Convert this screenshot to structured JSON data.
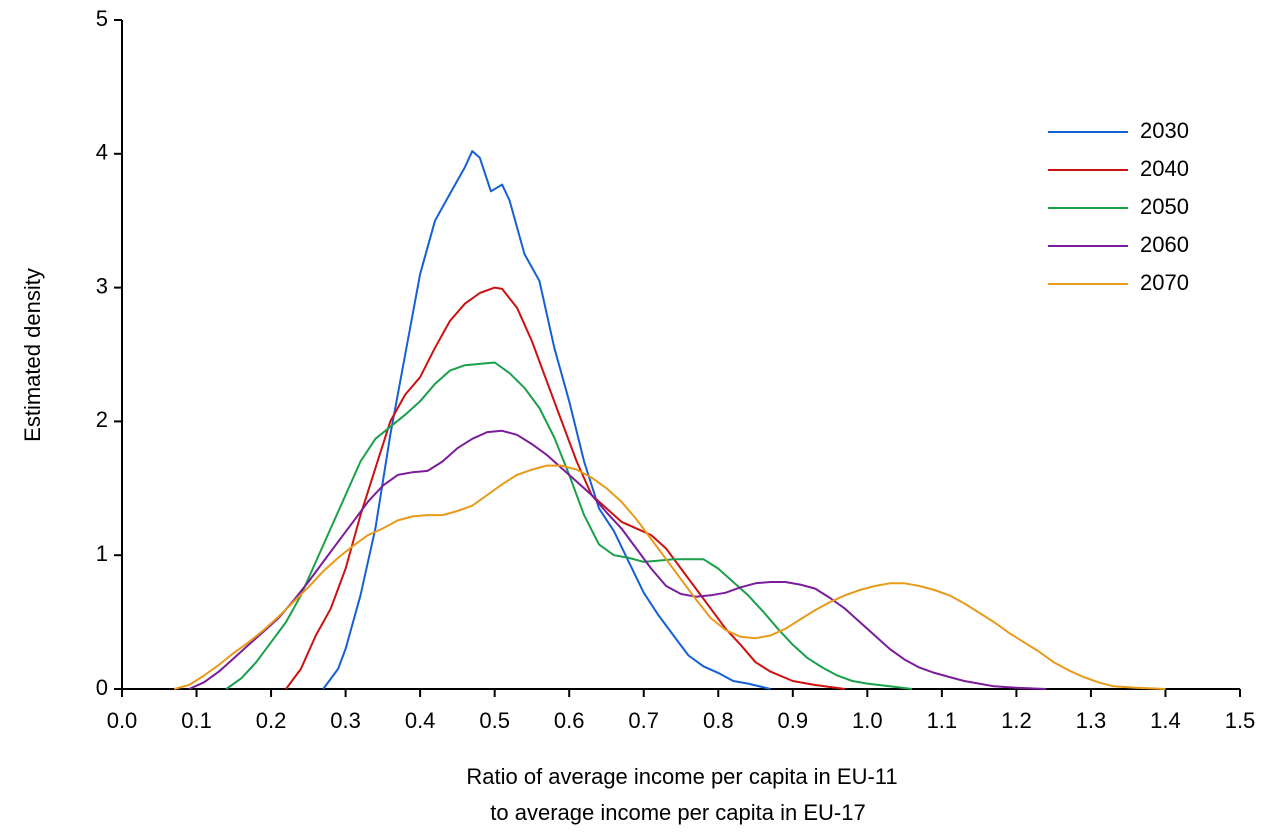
{
  "chart_data": {
    "type": "line",
    "ylabel": "Estimated density",
    "xlabel": [
      "Ratio of average income per capita in EU-11",
      "to average income per capita in EU-17"
    ],
    "xlim": [
      0,
      1.5
    ],
    "xticks": [
      {
        "value": 0,
        "label": "0.0"
      },
      0.1,
      0.2,
      0.3,
      0.4,
      0.5,
      0.6,
      0.7,
      0.8,
      0.9,
      {
        "value": 1,
        "label": "1.0"
      },
      1.1,
      1.2,
      1.3,
      1.4,
      1.5
    ],
    "ylim": [
      0,
      5
    ],
    "yticks": [
      0,
      1,
      2,
      3,
      4,
      5
    ],
    "legend": "top-right",
    "series": [
      {
        "name": "2030",
        "color": "#1560d4",
        "x": [
          0.27,
          0.29,
          0.3,
          0.32,
          0.34,
          0.36,
          0.38,
          0.4,
          0.42,
          0.44,
          0.46,
          0.47,
          0.48,
          0.495,
          0.51,
          0.52,
          0.54,
          0.56,
          0.58,
          0.6,
          0.62,
          0.64,
          0.66,
          0.68,
          0.7,
          0.72,
          0.74,
          0.76,
          0.78,
          0.8,
          0.82,
          0.84,
          0.87
        ],
        "values": [
          0,
          0.15,
          0.3,
          0.7,
          1.2,
          1.9,
          2.5,
          3.1,
          3.5,
          3.7,
          3.9,
          4.02,
          3.97,
          3.72,
          3.77,
          3.65,
          3.25,
          3.05,
          2.55,
          2.15,
          1.7,
          1.35,
          1.18,
          0.95,
          0.72,
          0.55,
          0.4,
          0.25,
          0.17,
          0.12,
          0.06,
          0.04,
          0
        ]
      },
      {
        "name": "2040",
        "color": "#cc1111",
        "x": [
          0.22,
          0.24,
          0.26,
          0.28,
          0.3,
          0.32,
          0.34,
          0.36,
          0.38,
          0.4,
          0.42,
          0.44,
          0.46,
          0.48,
          0.5,
          0.51,
          0.53,
          0.55,
          0.57,
          0.59,
          0.61,
          0.63,
          0.65,
          0.67,
          0.69,
          0.71,
          0.73,
          0.75,
          0.77,
          0.79,
          0.81,
          0.83,
          0.85,
          0.87,
          0.9,
          0.93,
          0.97
        ],
        "values": [
          0,
          0.15,
          0.4,
          0.6,
          0.9,
          1.3,
          1.65,
          2.0,
          2.2,
          2.33,
          2.55,
          2.75,
          2.88,
          2.96,
          3.0,
          2.99,
          2.85,
          2.6,
          2.3,
          2.0,
          1.7,
          1.45,
          1.35,
          1.25,
          1.2,
          1.15,
          1.05,
          0.9,
          0.75,
          0.6,
          0.45,
          0.33,
          0.2,
          0.13,
          0.06,
          0.03,
          0
        ]
      },
      {
        "name": "2050",
        "color": "#1aa04b",
        "x": [
          0.14,
          0.16,
          0.18,
          0.2,
          0.22,
          0.24,
          0.26,
          0.28,
          0.3,
          0.32,
          0.34,
          0.36,
          0.38,
          0.4,
          0.42,
          0.44,
          0.46,
          0.48,
          0.5,
          0.52,
          0.54,
          0.56,
          0.58,
          0.6,
          0.62,
          0.64,
          0.66,
          0.68,
          0.7,
          0.72,
          0.74,
          0.76,
          0.78,
          0.8,
          0.82,
          0.84,
          0.86,
          0.88,
          0.9,
          0.92,
          0.94,
          0.96,
          0.98,
          1.0,
          1.03,
          1.06
        ],
        "values": [
          0,
          0.08,
          0.2,
          0.35,
          0.5,
          0.7,
          0.95,
          1.2,
          1.45,
          1.7,
          1.87,
          1.96,
          2.05,
          2.15,
          2.28,
          2.38,
          2.42,
          2.43,
          2.44,
          2.36,
          2.25,
          2.1,
          1.88,
          1.6,
          1.3,
          1.08,
          1.0,
          0.98,
          0.95,
          0.96,
          0.97,
          0.97,
          0.97,
          0.9,
          0.8,
          0.7,
          0.58,
          0.45,
          0.33,
          0.23,
          0.16,
          0.1,
          0.06,
          0.04,
          0.02,
          0
        ]
      },
      {
        "name": "2060",
        "color": "#7b1c9c",
        "x": [
          0.09,
          0.11,
          0.13,
          0.15,
          0.17,
          0.19,
          0.21,
          0.23,
          0.25,
          0.27,
          0.29,
          0.31,
          0.33,
          0.35,
          0.37,
          0.39,
          0.41,
          0.43,
          0.45,
          0.47,
          0.49,
          0.51,
          0.53,
          0.55,
          0.57,
          0.59,
          0.61,
          0.63,
          0.65,
          0.67,
          0.69,
          0.71,
          0.73,
          0.75,
          0.77,
          0.79,
          0.81,
          0.83,
          0.85,
          0.87,
          0.89,
          0.91,
          0.93,
          0.95,
          0.97,
          0.99,
          1.01,
          1.03,
          1.05,
          1.07,
          1.09,
          1.11,
          1.13,
          1.15,
          1.17,
          1.2,
          1.24
        ],
        "values": [
          0,
          0.05,
          0.13,
          0.23,
          0.33,
          0.43,
          0.53,
          0.66,
          0.8,
          0.95,
          1.1,
          1.25,
          1.4,
          1.52,
          1.6,
          1.62,
          1.63,
          1.7,
          1.8,
          1.87,
          1.92,
          1.93,
          1.9,
          1.83,
          1.75,
          1.65,
          1.55,
          1.45,
          1.32,
          1.2,
          1.05,
          0.9,
          0.77,
          0.71,
          0.69,
          0.7,
          0.72,
          0.76,
          0.79,
          0.8,
          0.8,
          0.78,
          0.75,
          0.68,
          0.6,
          0.5,
          0.4,
          0.3,
          0.22,
          0.16,
          0.12,
          0.09,
          0.06,
          0.04,
          0.02,
          0.01,
          0
        ]
      },
      {
        "name": "2070",
        "color": "#e89a1a",
        "x": [
          0.07,
          0.09,
          0.11,
          0.13,
          0.15,
          0.17,
          0.19,
          0.21,
          0.23,
          0.25,
          0.27,
          0.29,
          0.31,
          0.33,
          0.35,
          0.37,
          0.39,
          0.41,
          0.43,
          0.45,
          0.47,
          0.49,
          0.51,
          0.53,
          0.55,
          0.57,
          0.59,
          0.61,
          0.63,
          0.65,
          0.67,
          0.69,
          0.71,
          0.73,
          0.75,
          0.77,
          0.79,
          0.81,
          0.83,
          0.85,
          0.87,
          0.89,
          0.91,
          0.93,
          0.95,
          0.97,
          0.99,
          1.01,
          1.03,
          1.05,
          1.07,
          1.09,
          1.11,
          1.13,
          1.15,
          1.17,
          1.19,
          1.21,
          1.23,
          1.25,
          1.27,
          1.29,
          1.31,
          1.33,
          1.36,
          1.4
        ],
        "values": [
          0,
          0.03,
          0.1,
          0.18,
          0.27,
          0.35,
          0.44,
          0.54,
          0.65,
          0.76,
          0.88,
          0.98,
          1.07,
          1.15,
          1.2,
          1.26,
          1.29,
          1.3,
          1.3,
          1.33,
          1.37,
          1.45,
          1.53,
          1.6,
          1.64,
          1.67,
          1.67,
          1.64,
          1.58,
          1.5,
          1.4,
          1.27,
          1.12,
          0.97,
          0.82,
          0.67,
          0.53,
          0.44,
          0.39,
          0.38,
          0.4,
          0.45,
          0.52,
          0.59,
          0.65,
          0.7,
          0.74,
          0.77,
          0.79,
          0.79,
          0.77,
          0.74,
          0.7,
          0.64,
          0.57,
          0.5,
          0.42,
          0.35,
          0.28,
          0.2,
          0.14,
          0.09,
          0.05,
          0.02,
          0.01,
          0
        ]
      }
    ]
  }
}
